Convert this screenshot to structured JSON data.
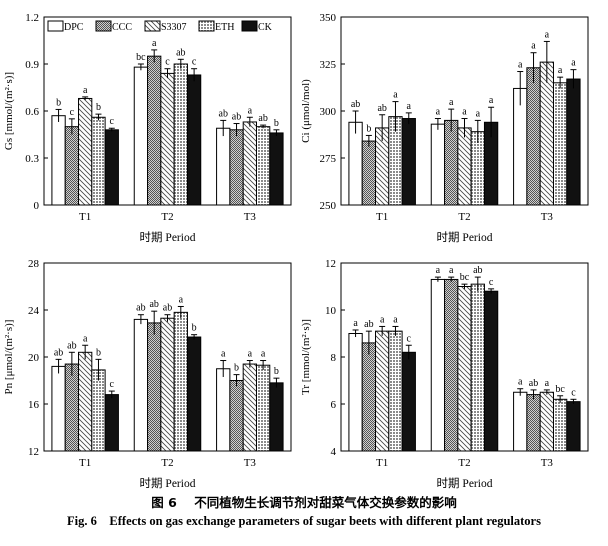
{
  "legend": {
    "DPC": "DPC",
    "CCC": "CCC",
    "S3307": "S3307",
    "ETH": "ETH",
    "CK": "CK"
  },
  "caption": {
    "cn_label": "图 6",
    "cn_text": "不同植物生长调节剂对甜菜气体交换参数的影响",
    "en_label": "Fig. 6",
    "en_text": "Effects on gas exchange parameters of sugar beets  with different plant regulators"
  },
  "chart_data": [
    {
      "type": "bar",
      "ylabel": "Gs [mmol/(m²·s)]",
      "xlabel": "时期 Period",
      "categories": [
        "T1",
        "T2",
        "T3"
      ],
      "ylim": [
        0,
        1.2
      ],
      "yticks": [
        "0",
        "0.3",
        "0.6",
        "0.9",
        "1.2"
      ],
      "series": [
        {
          "name": "DPC",
          "values": [
            0.57,
            0.88,
            0.49
          ],
          "errors": [
            0.04,
            0.02,
            0.05
          ],
          "letters": [
            "b",
            "bc",
            "ab"
          ]
        },
        {
          "name": "CCC",
          "values": [
            0.5,
            0.95,
            0.48
          ],
          "errors": [
            0.05,
            0.04,
            0.04
          ],
          "letters": [
            "c",
            "a",
            "ab"
          ]
        },
        {
          "name": "S3307",
          "values": [
            0.68,
            0.84,
            0.53
          ],
          "errors": [
            0.01,
            0.03,
            0.03
          ],
          "letters": [
            "a",
            "c",
            "a"
          ]
        },
        {
          "name": "ETH",
          "values": [
            0.56,
            0.9,
            0.5
          ],
          "errors": [
            0.02,
            0.03,
            0.01
          ],
          "letters": [
            "b",
            "ab",
            "ab"
          ]
        },
        {
          "name": "CK",
          "values": [
            0.48,
            0.83,
            0.46
          ],
          "errors": [
            0.01,
            0.04,
            0.02
          ],
          "letters": [
            "c",
            "c",
            "b"
          ]
        }
      ]
    },
    {
      "type": "bar",
      "ylabel": "Ci (μmol/mol)",
      "xlabel": "时期 Period",
      "categories": [
        "T1",
        "T2",
        "T3"
      ],
      "ylim": [
        250,
        350
      ],
      "yticks": [
        "250",
        "275",
        "300",
        "325",
        "350"
      ],
      "series": [
        {
          "name": "DPC",
          "values": [
            294,
            293,
            312
          ],
          "errors": [
            6,
            3,
            9
          ],
          "letters": [
            "ab",
            "a",
            "a"
          ]
        },
        {
          "name": "CCC",
          "values": [
            284,
            295,
            323
          ],
          "errors": [
            3,
            6,
            8
          ],
          "letters": [
            "b",
            "a",
            "a"
          ]
        },
        {
          "name": "S3307",
          "values": [
            291,
            291,
            326
          ],
          "errors": [
            7,
            5,
            11
          ],
          "letters": [
            "ab",
            "a",
            "a"
          ]
        },
        {
          "name": "ETH",
          "values": [
            297,
            289,
            315
          ],
          "errors": [
            8,
            6,
            3
          ],
          "letters": [
            "a",
            "a",
            "a"
          ]
        },
        {
          "name": "CK",
          "values": [
            296,
            294,
            317
          ],
          "errors": [
            3,
            8,
            5
          ],
          "letters": [
            "a",
            "a",
            "a"
          ]
        }
      ]
    },
    {
      "type": "bar",
      "ylabel": "Pn [μmol/(m²·s)]",
      "xlabel": "时期 Period",
      "categories": [
        "T1",
        "T2",
        "T3"
      ],
      "ylim": [
        12,
        28
      ],
      "yticks": [
        "12",
        "16",
        "20",
        "24",
        "28"
      ],
      "series": [
        {
          "name": "DPC",
          "values": [
            19.2,
            23.2,
            19.0
          ],
          "errors": [
            0.6,
            0.4,
            0.7
          ],
          "letters": [
            "ab",
            "ab",
            "a"
          ]
        },
        {
          "name": "CCC",
          "values": [
            19.4,
            22.9,
            18.0
          ],
          "errors": [
            1.0,
            1.0,
            0.5
          ],
          "letters": [
            "ab",
            "ab",
            "b"
          ]
        },
        {
          "name": "S3307",
          "values": [
            20.4,
            23.3,
            19.4
          ],
          "errors": [
            0.6,
            0.3,
            0.3
          ],
          "letters": [
            "a",
            "ab",
            "a"
          ]
        },
        {
          "name": "ETH",
          "values": [
            18.9,
            23.8,
            19.3
          ],
          "errors": [
            0.9,
            0.5,
            0.4
          ],
          "letters": [
            "b",
            "a",
            "a"
          ]
        },
        {
          "name": "CK",
          "values": [
            16.8,
            21.7,
            17.8
          ],
          "errors": [
            0.3,
            0.2,
            0.4
          ],
          "letters": [
            "c",
            "b",
            "b"
          ]
        }
      ]
    },
    {
      "type": "bar",
      "ylabel": "Tr [mmol/(m²·s)]",
      "xlabel": "时期 Period",
      "categories": [
        "T1",
        "T2",
        "T3"
      ],
      "ylim": [
        4,
        12
      ],
      "yticks": [
        "4",
        "6",
        "8",
        "10",
        "12"
      ],
      "series": [
        {
          "name": "DPC",
          "values": [
            9.0,
            11.3,
            6.5
          ],
          "errors": [
            0.15,
            0.1,
            0.15
          ],
          "letters": [
            "a",
            "a",
            "a"
          ]
        },
        {
          "name": "CCC",
          "values": [
            8.6,
            11.3,
            6.4
          ],
          "errors": [
            0.5,
            0.1,
            0.2
          ],
          "letters": [
            "ab",
            "a",
            "ab"
          ]
        },
        {
          "name": "S3307",
          "values": [
            9.1,
            11.0,
            6.5
          ],
          "errors": [
            0.2,
            0.1,
            0.1
          ],
          "letters": [
            "a",
            "bc",
            "a"
          ]
        },
        {
          "name": "ETH",
          "values": [
            9.1,
            11.1,
            6.2
          ],
          "errors": [
            0.2,
            0.3,
            0.15
          ],
          "letters": [
            "a",
            "ab",
            "bc"
          ]
        },
        {
          "name": "CK",
          "values": [
            8.2,
            10.8,
            6.1
          ],
          "errors": [
            0.3,
            0.1,
            0.1
          ],
          "letters": [
            "c",
            "c",
            "c"
          ]
        }
      ]
    }
  ]
}
